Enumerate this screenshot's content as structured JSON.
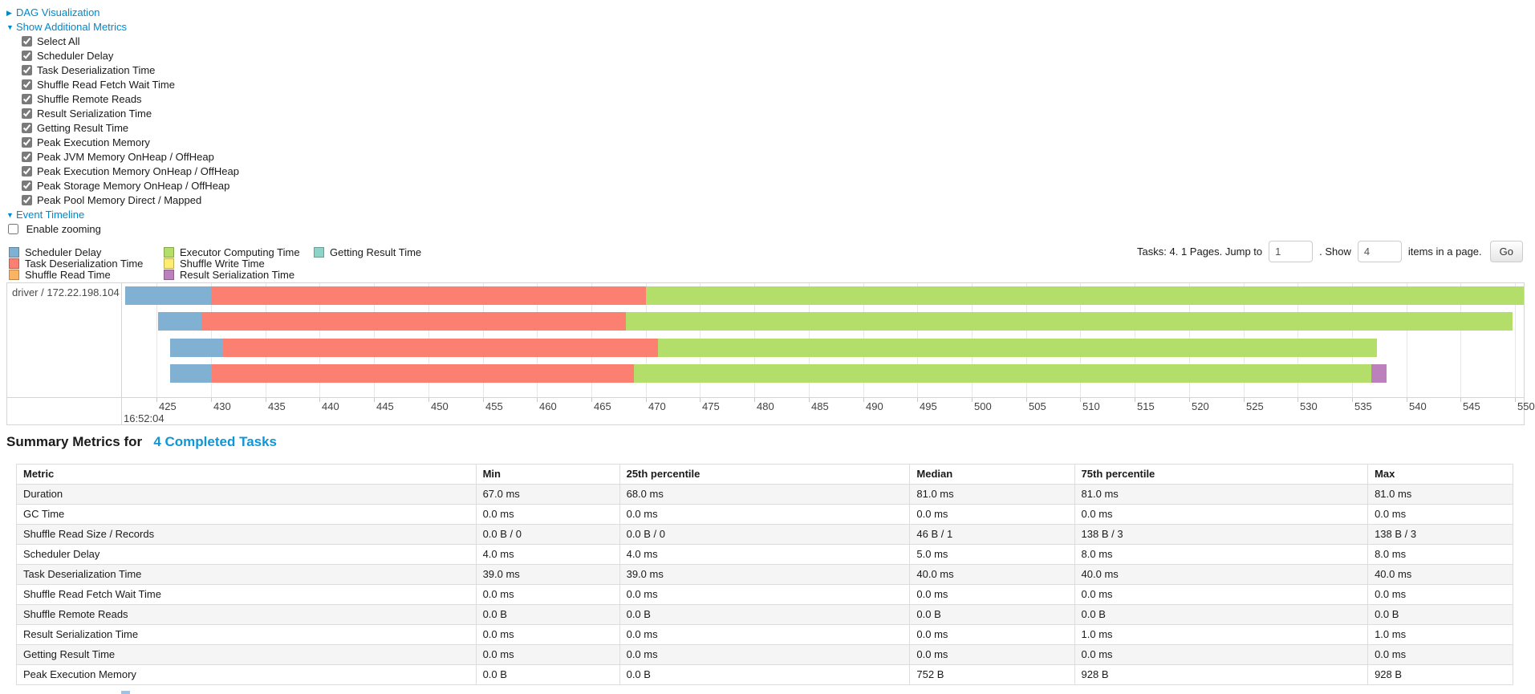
{
  "colors": {
    "link": "#0088cc",
    "title_link": "#0f96d6",
    "scheduler_delay": "#80B1D3",
    "task_deserialization": "#FB8072",
    "shuffle_read": "#FDB462",
    "executor_computing": "#B3DE69",
    "shuffle_write": "#FFED6F",
    "result_serialization": "#BC80BD",
    "getting_result": "#8DD3C7"
  },
  "controls": {
    "dag": {
      "arrow": "▶",
      "label": "DAG Visualization"
    },
    "metrics": {
      "arrow": "▼",
      "label": "Show Additional Metrics"
    },
    "metric_checkboxes": [
      {
        "label": "Select All",
        "checked": true
      },
      {
        "label": "Scheduler Delay",
        "checked": true
      },
      {
        "label": "Task Deserialization Time",
        "checked": true
      },
      {
        "label": "Shuffle Read Fetch Wait Time",
        "checked": true
      },
      {
        "label": "Shuffle Remote Reads",
        "checked": true
      },
      {
        "label": "Result Serialization Time",
        "checked": true
      },
      {
        "label": "Getting Result Time",
        "checked": true
      },
      {
        "label": "Peak Execution Memory",
        "checked": true
      },
      {
        "label": "Peak JVM Memory OnHeap / OffHeap",
        "checked": true
      },
      {
        "label": "Peak Execution Memory OnHeap / OffHeap",
        "checked": true
      },
      {
        "label": "Peak Storage Memory OnHeap / OffHeap",
        "checked": true
      },
      {
        "label": "Peak Pool Memory Direct / Mapped",
        "checked": true
      }
    ],
    "event_timeline": {
      "arrow": "▼",
      "label": "Event Timeline"
    },
    "enable_zooming": {
      "label": "Enable zooming",
      "checked": false
    }
  },
  "pagination": {
    "prefix": "Tasks: 4. 1 Pages. Jump to",
    "jump_value": "1",
    "mid": ". Show",
    "show_value": "4",
    "suffix": "items in a page.",
    "go_label": "Go"
  },
  "chart_data": {
    "type": "timeline-gantt",
    "executor_label": "driver / 172.22.198.104",
    "x_axis": {
      "domain": [
        421.8,
        550.8
      ],
      "tick_start": 425,
      "tick_end": 550,
      "tick_step": 5,
      "major_label": "16:52:04",
      "unit": "milliseconds within 16:52:04"
    },
    "legend": [
      {
        "label": "Scheduler Delay",
        "metric": "scheduler_delay",
        "column": 0
      },
      {
        "label": "Task Deserialization Time",
        "metric": "task_deserialization",
        "column": 0
      },
      {
        "label": "Shuffle Read Time",
        "metric": "shuffle_read",
        "column": 0
      },
      {
        "label": "Executor Computing Time",
        "metric": "executor_computing",
        "column": 1
      },
      {
        "label": "Shuffle Write Time",
        "metric": "shuffle_write",
        "column": 1
      },
      {
        "label": "Result Serialization Time",
        "metric": "result_serialization",
        "column": 1
      },
      {
        "label": "Getting Result Time",
        "metric": "getting_result",
        "column": 2
      }
    ],
    "tasks": [
      {
        "segments": [
          {
            "metric": "scheduler_delay",
            "start": 422.1,
            "end": 430.0
          },
          {
            "metric": "task_deserialization",
            "start": 430.0,
            "end": 470.0
          },
          {
            "metric": "executor_computing",
            "start": 470.0,
            "end": 550.8
          }
        ]
      },
      {
        "segments": [
          {
            "metric": "scheduler_delay",
            "start": 425.1,
            "end": 429.1
          },
          {
            "metric": "task_deserialization",
            "start": 429.1,
            "end": 468.2
          },
          {
            "metric": "executor_computing",
            "start": 468.2,
            "end": 549.8
          }
        ]
      },
      {
        "segments": [
          {
            "metric": "scheduler_delay",
            "start": 426.2,
            "end": 431.1
          },
          {
            "metric": "task_deserialization",
            "start": 431.1,
            "end": 471.1
          },
          {
            "metric": "executor_computing",
            "start": 471.1,
            "end": 537.3
          }
        ]
      },
      {
        "segments": [
          {
            "metric": "scheduler_delay",
            "start": 426.2,
            "end": 430.1
          },
          {
            "metric": "task_deserialization",
            "start": 430.1,
            "end": 468.9
          },
          {
            "metric": "executor_computing",
            "start": 468.9,
            "end": 536.8
          },
          {
            "metric": "result_serialization",
            "start": 536.8,
            "end": 538.2
          }
        ]
      }
    ]
  },
  "summary": {
    "title_prefix": "Summary Metrics for",
    "title_link": "4 Completed Tasks",
    "table": {
      "columns": [
        "Metric",
        "Min",
        "25th percentile",
        "Median",
        "75th percentile",
        "Max"
      ],
      "rows": [
        [
          "Duration",
          "67.0 ms",
          "68.0 ms",
          "81.0 ms",
          "81.0 ms",
          "81.0 ms"
        ],
        [
          "GC Time",
          "0.0 ms",
          "0.0 ms",
          "0.0 ms",
          "0.0 ms",
          "0.0 ms"
        ],
        [
          "Shuffle Read Size / Records",
          "0.0 B / 0",
          "0.0 B / 0",
          "46 B / 1",
          "138 B / 3",
          "138 B / 3"
        ],
        [
          "Scheduler Delay",
          "4.0 ms",
          "4.0 ms",
          "5.0 ms",
          "8.0 ms",
          "8.0 ms"
        ],
        [
          "Task Deserialization Time",
          "39.0 ms",
          "39.0 ms",
          "40.0 ms",
          "40.0 ms",
          "40.0 ms"
        ],
        [
          "Shuffle Read Fetch Wait Time",
          "0.0 ms",
          "0.0 ms",
          "0.0 ms",
          "0.0 ms",
          "0.0 ms"
        ],
        [
          "Shuffle Remote Reads",
          "0.0 B",
          "0.0 B",
          "0.0 B",
          "0.0 B",
          "0.0 B"
        ],
        [
          "Result Serialization Time",
          "0.0 ms",
          "0.0 ms",
          "0.0 ms",
          "1.0 ms",
          "1.0 ms"
        ],
        [
          "Getting Result Time",
          "0.0 ms",
          "0.0 ms",
          "0.0 ms",
          "0.0 ms",
          "0.0 ms"
        ],
        [
          "Peak Execution Memory",
          "0.0 B",
          "0.0 B",
          "752 B",
          "928 B",
          "928 B"
        ]
      ]
    }
  }
}
